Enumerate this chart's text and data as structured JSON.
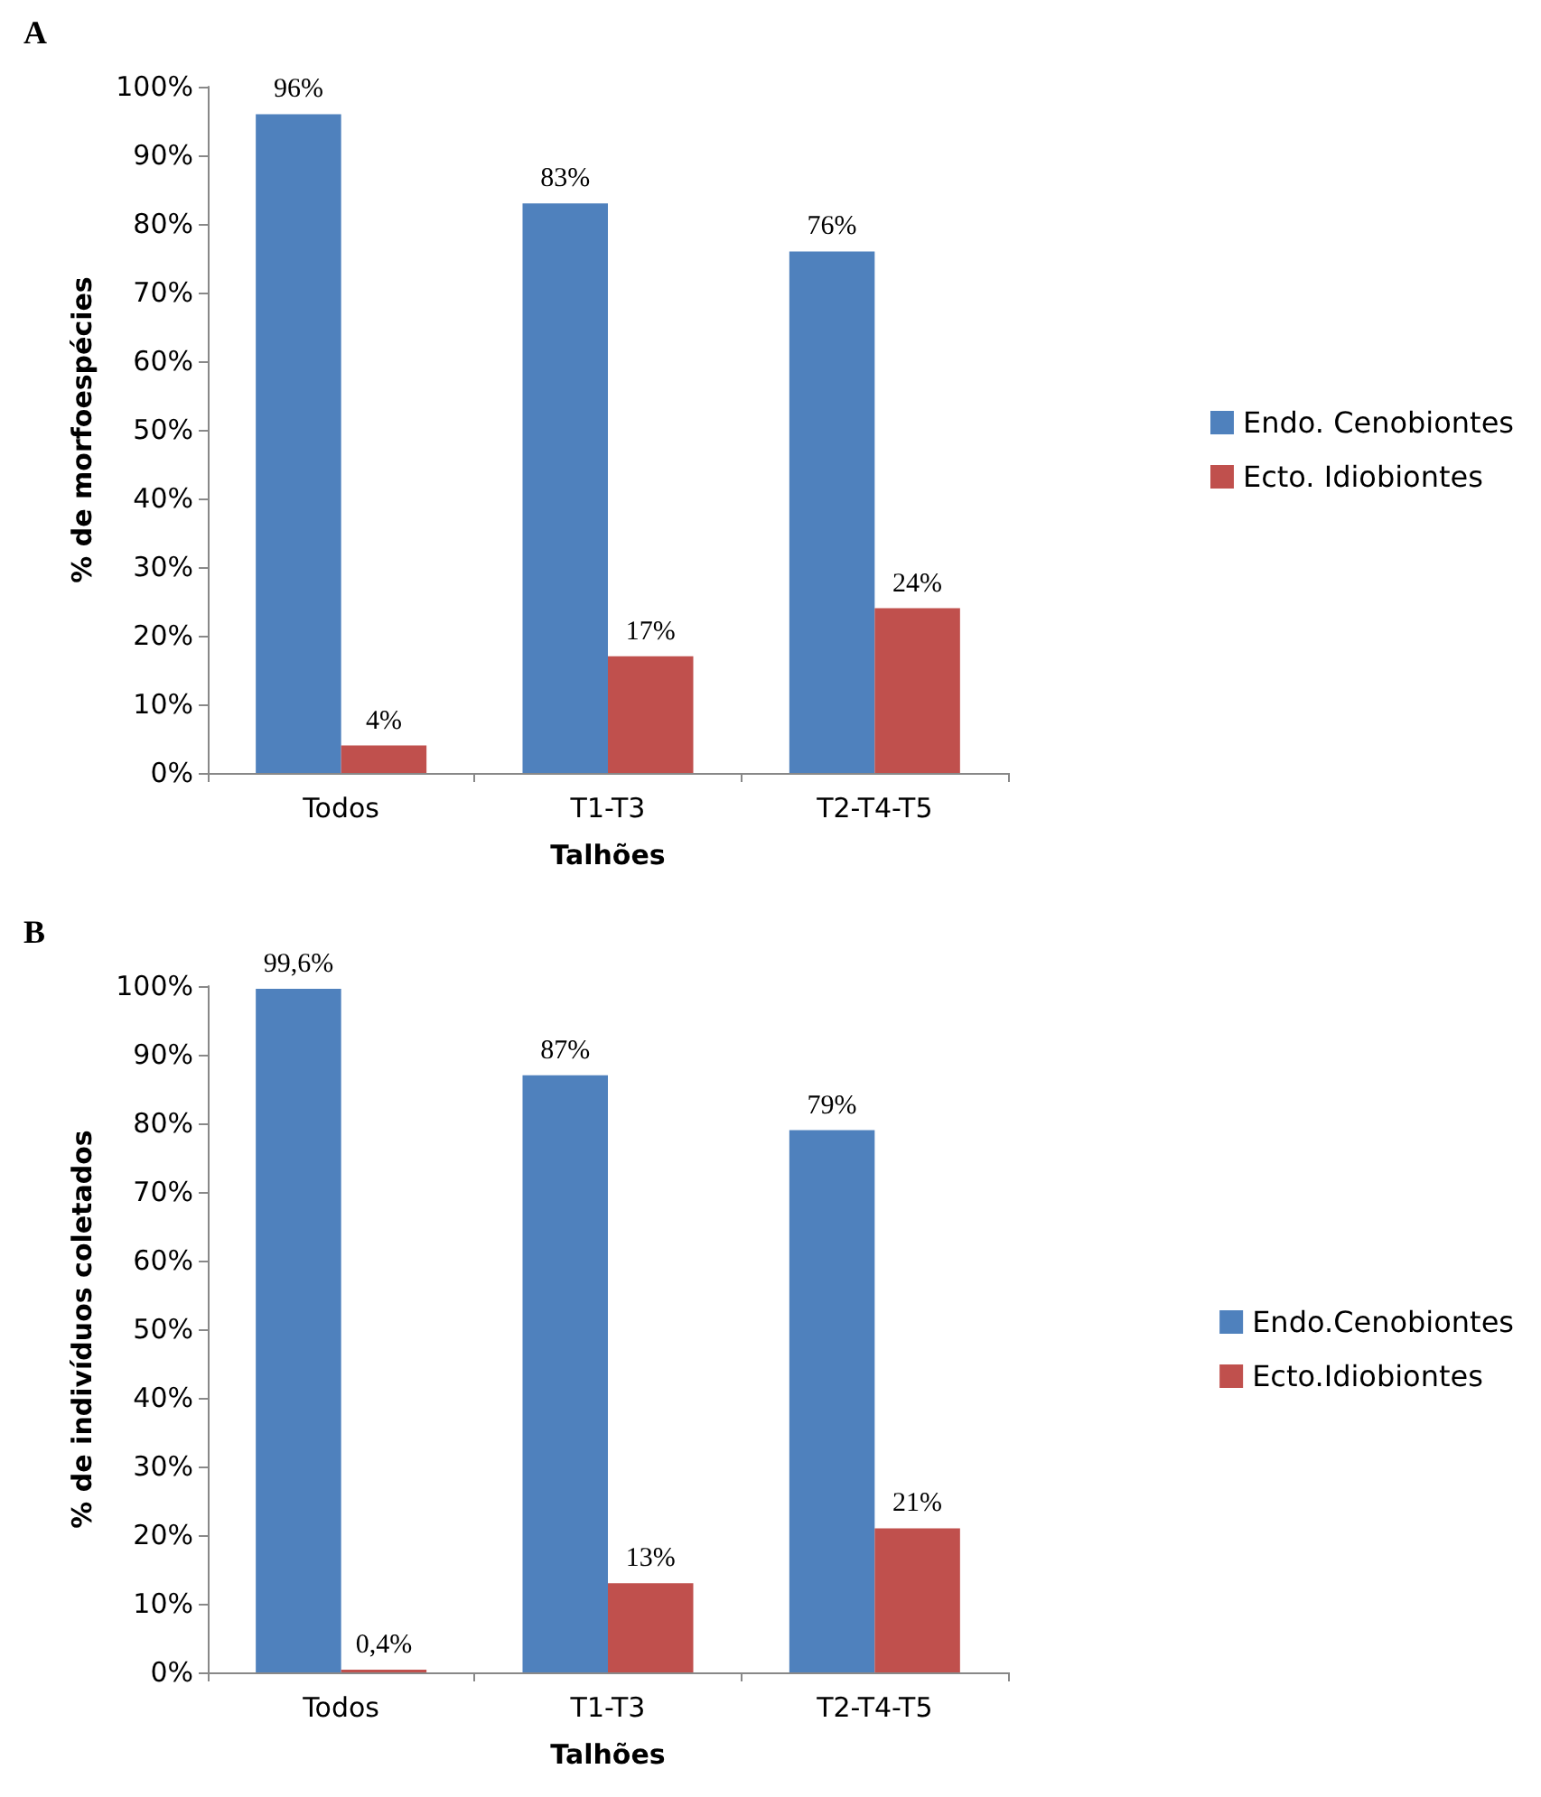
{
  "chart_data": [
    {
      "type": "bar",
      "title": "A",
      "xlabel": "Talhões",
      "ylabel": "% de morfoespécies",
      "categories": [
        "Todos",
        "T1-T3",
        "T2-T4-T5"
      ],
      "series": [
        {
          "name": "Endo. Cenobiontes",
          "color": "#4f81bd",
          "values": [
            96,
            83,
            76
          ],
          "value_labels": [
            "96%",
            "83%",
            "76%"
          ]
        },
        {
          "name": "Ecto. Idiobiontes",
          "color": "#c0504d",
          "values": [
            4,
            17,
            24
          ],
          "value_labels": [
            "4%",
            "17%",
            "24%"
          ]
        }
      ],
      "ylim": [
        0,
        100
      ],
      "yticks": [
        {
          "value": 0,
          "label": "0%"
        },
        {
          "value": 10,
          "label": "10%"
        },
        {
          "value": 20,
          "label": "20%"
        },
        {
          "value": 30,
          "label": "30%"
        },
        {
          "value": 40,
          "label": "40%"
        },
        {
          "value": 50,
          "label": "50%"
        },
        {
          "value": 60,
          "label": "60%"
        },
        {
          "value": 70,
          "label": "70%"
        },
        {
          "value": 80,
          "label": "80%"
        },
        {
          "value": 90,
          "label": "90%"
        },
        {
          "value": 100,
          "label": "100%"
        }
      ],
      "grid": false,
      "legend": "right"
    },
    {
      "type": "bar",
      "title": "B",
      "xlabel": "Talhões",
      "ylabel": "% de indivíduos coletados",
      "categories": [
        "Todos",
        "T1-T3",
        "T2-T4-T5"
      ],
      "series": [
        {
          "name": "Endo.Cenobiontes",
          "color": "#4f81bd",
          "values": [
            99.6,
            87,
            79
          ],
          "value_labels": [
            "99,6%",
            "87%",
            "79%"
          ]
        },
        {
          "name": "Ecto.Idiobiontes",
          "color": "#c0504d",
          "values": [
            0.4,
            13,
            21
          ],
          "value_labels": [
            "0,4%",
            "13%",
            "21%"
          ]
        }
      ],
      "ylim": [
        0,
        100
      ],
      "yticks": [
        {
          "value": 0,
          "label": "0%"
        },
        {
          "value": 10,
          "label": "10%"
        },
        {
          "value": 20,
          "label": "20%"
        },
        {
          "value": 30,
          "label": "30%"
        },
        {
          "value": 40,
          "label": "40%"
        },
        {
          "value": 50,
          "label": "50%"
        },
        {
          "value": 60,
          "label": "60%"
        },
        {
          "value": 70,
          "label": "70%"
        },
        {
          "value": 80,
          "label": "80%"
        },
        {
          "value": 90,
          "label": "90%"
        },
        {
          "value": 100,
          "label": "100%"
        }
      ],
      "grid": false,
      "legend": "right"
    }
  ]
}
